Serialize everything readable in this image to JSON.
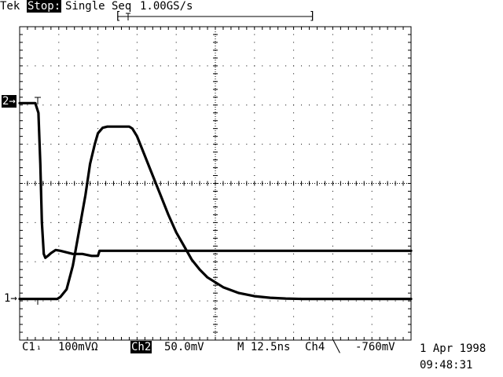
{
  "header": {
    "brand": "Tek",
    "run_state": "Stop:",
    "acq_mode": "Single Seq",
    "sample_rate": "1.00GS/s",
    "record_bracket_left": "[",
    "record_bracket_right": "]"
  },
  "markers": {
    "ch1_marker": "1→",
    "ch2_marker": "2→"
  },
  "footer": {
    "ch1_label": "C1",
    "ch1_coupling": "₁",
    "ch1_scale": "100mVΩ",
    "ch2_label": "Ch2",
    "ch2_scale": "50.0mV",
    "timebase": "M 12.5ns",
    "trigger_source": "Ch4",
    "trigger_slope": "╲",
    "trigger_level": "-760mV",
    "date": "1 Apr 1998",
    "time": "09:48:31"
  },
  "colors": {
    "trace": "#000000",
    "background": "#ffffff",
    "graticule": "#000000"
  },
  "chart_data": {
    "type": "line",
    "grid": true,
    "xlim": [
      0,
      125
    ],
    "x_unit": "ns",
    "ylim": [
      -4,
      4
    ],
    "y_unit": "div",
    "series": [
      {
        "x": [
          0,
          5,
          6,
          6.6,
          7.1,
          7.7,
          8.2,
          9,
          10,
          11.5,
          13,
          15,
          17,
          20,
          23,
          25,
          25.5,
          27,
          30,
          40,
          125
        ],
        "y": [
          2.05,
          2.05,
          1.8,
          0.5,
          -1.0,
          -1.8,
          -1.9,
          -1.85,
          -1.78,
          -1.7,
          -1.72,
          -1.76,
          -1.8,
          -1.8,
          -1.85,
          -1.85,
          -1.72,
          -1.72,
          -1.72,
          -1.72,
          -1.72
        ]
      },
      {
        "x": [
          0,
          12,
          13,
          15,
          17,
          19,
          21,
          22.5,
          24,
          25,
          26.5,
          28,
          30,
          35,
          36,
          37.5,
          39,
          40,
          42.5,
          45,
          47.5,
          50,
          52.5,
          55,
          57.5,
          60,
          65,
          70,
          75,
          80,
          85,
          90,
          100,
          125
        ],
        "y": [
          -2.95,
          -2.95,
          -2.9,
          -2.7,
          -2.1,
          -1.2,
          -0.3,
          0.5,
          1.0,
          1.28,
          1.42,
          1.45,
          1.45,
          1.45,
          1.4,
          1.2,
          0.9,
          0.7,
          0.2,
          -0.3,
          -0.8,
          -1.25,
          -1.6,
          -1.95,
          -2.2,
          -2.4,
          -2.65,
          -2.8,
          -2.88,
          -2.92,
          -2.94,
          -2.95,
          -2.95,
          -2.95
        ]
      }
    ]
  }
}
